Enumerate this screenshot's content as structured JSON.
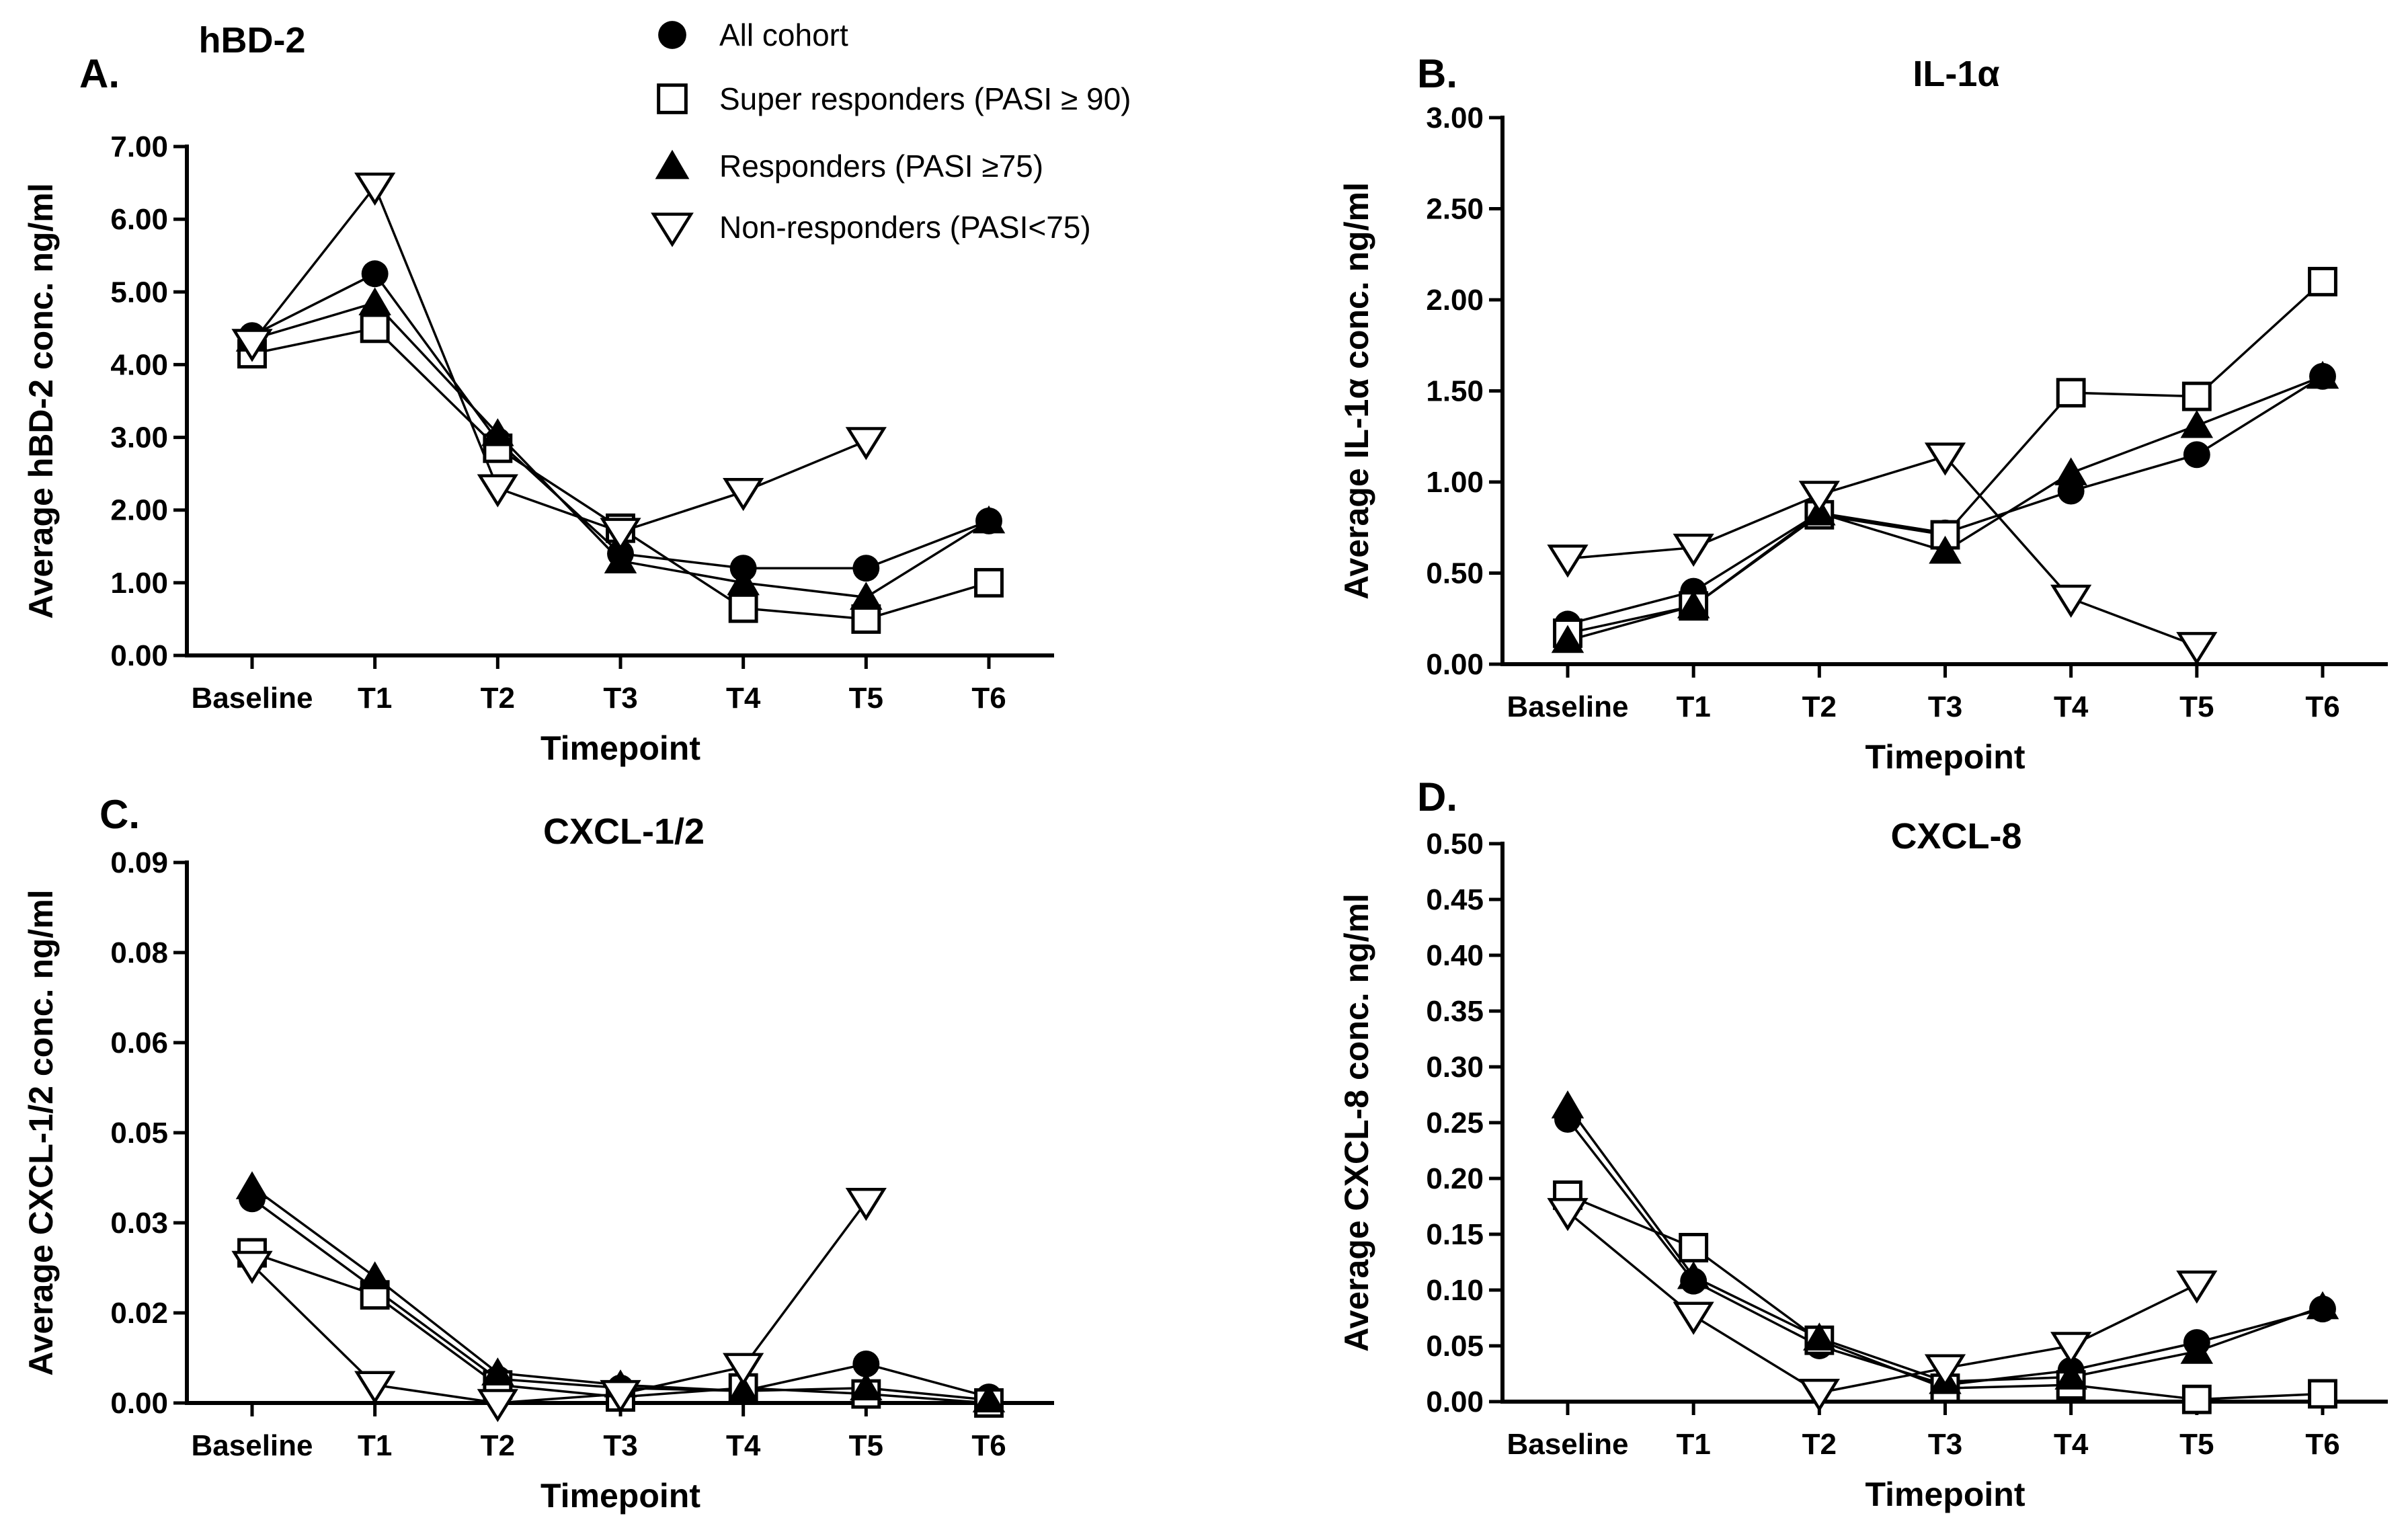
{
  "legend": [
    {
      "key": "all",
      "label": "All cohort",
      "marker": "circle"
    },
    {
      "key": "super",
      "label": "Super responders (PASI ≥ 90)",
      "marker": "square"
    },
    {
      "key": "resp",
      "label": "Responders (PASI ≥75)",
      "marker": "triangle"
    },
    {
      "key": "non",
      "label": "Non-responders (PASI<75)",
      "marker": "triangle-down"
    }
  ],
  "chart_data": [
    {
      "type": "line",
      "panel": "A.",
      "title": "hBD-2",
      "xlabel": "Timepoint",
      "ylabel": "Average hBD-2 conc. ng/ml",
      "categories": [
        "Baseline",
        "T1",
        "T2",
        "T3",
        "T4",
        "T5",
        "T6"
      ],
      "ylim": [
        0,
        7
      ],
      "yticks": [
        "0.00",
        "1.00",
        "2.00",
        "3.00",
        "4.00",
        "5.00",
        "6.00",
        "7.00"
      ],
      "series": [
        {
          "name": "All cohort",
          "values": [
            4.4,
            5.25,
            2.95,
            1.4,
            1.2,
            1.2,
            1.85
          ]
        },
        {
          "name": "Super responders (PASI ≥ 90)",
          "values": [
            4.15,
            4.5,
            2.85,
            1.75,
            0.65,
            0.5,
            1.0
          ]
        },
        {
          "name": "Responders (PASI ≥75)",
          "values": [
            4.35,
            4.85,
            3.05,
            1.3,
            1.0,
            0.8,
            1.85
          ]
        },
        {
          "name": "Non-responders (PASI<75)",
          "values": [
            4.3,
            6.45,
            2.3,
            1.7,
            2.25,
            2.95,
            null
          ]
        }
      ]
    },
    {
      "type": "line",
      "panel": "B.",
      "title": "IL-1α",
      "xlabel": "Timepoint",
      "ylabel": "Average IL-1α conc. ng/ml",
      "categories": [
        "Baseline",
        "T1",
        "T2",
        "T3",
        "T4",
        "T5",
        "T6"
      ],
      "ylim": [
        0,
        3
      ],
      "yticks": [
        "0.00",
        "0.50",
        "1.00",
        "1.50",
        "2.00",
        "2.50",
        "3.00"
      ],
      "series": [
        {
          "name": "All cohort",
          "values": [
            0.22,
            0.4,
            0.83,
            0.72,
            0.95,
            1.15,
            1.58
          ]
        },
        {
          "name": "Super responders (PASI ≥ 90)",
          "values": [
            0.17,
            0.32,
            0.82,
            0.71,
            1.49,
            1.47,
            2.1
          ]
        },
        {
          "name": "Responders (PASI ≥75)",
          "values": [
            0.13,
            0.32,
            0.83,
            0.62,
            1.05,
            1.31,
            1.58
          ]
        },
        {
          "name": "Non-responders (PASI<75)",
          "values": [
            0.58,
            0.64,
            0.93,
            1.14,
            0.36,
            0.1,
            null
          ]
        }
      ]
    },
    {
      "type": "line",
      "panel": "C.",
      "title": "CXCL-1/2",
      "xlabel": "Timepoint",
      "ylabel": "Average CXCL-1/2 conc. ng/ml",
      "categories": [
        "Baseline",
        "T1",
        "T2",
        "T3",
        "T4",
        "T5",
        "T6"
      ],
      "ylim": [
        0,
        0.09
      ],
      "yticks": [
        "0.00",
        "0.02",
        "0.03",
        "0.05",
        "0.06",
        "0.08",
        "0.09"
      ],
      "ytick_values": [
        0,
        0.015,
        0.03,
        0.045,
        0.06,
        0.075,
        0.09
      ],
      "series": [
        {
          "name": "All cohort",
          "values": [
            0.034,
            0.019,
            0.004,
            0.0025,
            0.002,
            0.0065,
            0.001
          ]
        },
        {
          "name": "Super responders (PASI ≥ 90)",
          "values": [
            0.025,
            0.018,
            0.003,
            0.001,
            0.0025,
            0.0015,
            0.0
          ]
        },
        {
          "name": "Responders (PASI ≥75)",
          "values": [
            0.036,
            0.021,
            0.005,
            0.003,
            0.002,
            0.0025,
            0.0005
          ]
        },
        {
          "name": "Non-responders (PASI<75)",
          "values": [
            0.023,
            0.003,
            0.0,
            0.0015,
            0.006,
            0.0335,
            null
          ]
        }
      ]
    },
    {
      "type": "line",
      "panel": "D.",
      "title": "CXCL-8",
      "xlabel": "Timepoint",
      "ylabel": "Average CXCL-8 conc. ng/ml",
      "categories": [
        "Baseline",
        "T1",
        "T2",
        "T3",
        "T4",
        "T5",
        "T6"
      ],
      "ylim": [
        0,
        0.5
      ],
      "yticks": [
        "0.00",
        "0.05",
        "0.10",
        "0.15",
        "0.20",
        "0.25",
        "0.30",
        "0.35",
        "0.40",
        "0.45",
        "0.50"
      ],
      "series": [
        {
          "name": "All cohort",
          "values": [
            0.253,
            0.108,
            0.05,
            0.015,
            0.028,
            0.053,
            0.083
          ]
        },
        {
          "name": "Super responders (PASI ≥ 90)",
          "values": [
            0.185,
            0.138,
            0.055,
            0.012,
            0.015,
            0.002,
            0.007
          ]
        },
        {
          "name": "Responders (PASI ≥75)",
          "values": [
            0.265,
            0.112,
            0.057,
            0.018,
            0.022,
            0.045,
            0.085
          ]
        },
        {
          "name": "Non-responders (PASI<75)",
          "values": [
            0.17,
            0.077,
            0.008,
            0.03,
            0.05,
            0.105,
            null
          ]
        }
      ]
    }
  ]
}
